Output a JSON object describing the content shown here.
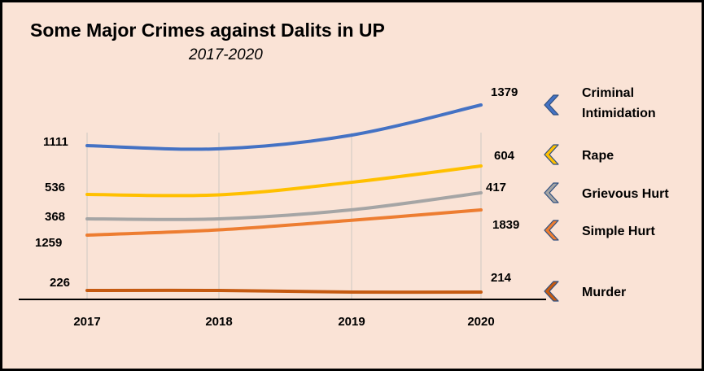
{
  "chart_data": {
    "type": "line",
    "title": "Some Major Crimes against Dalits in UP",
    "subtitle": "2017-2020",
    "xlabel": "",
    "ylabel": "",
    "categories": [
      "2017",
      "2018",
      "2019",
      "2020"
    ],
    "series": [
      {
        "name": "Criminal Intimidation",
        "legend_lines": [
          "Criminal",
          "Intimidation"
        ],
        "color": "#4472c4",
        "values": [
          1111,
          1090,
          1180,
          1379
        ],
        "labels": [
          "1111",
          "",
          "",
          "1379"
        ]
      },
      {
        "name": "Rape",
        "legend_lines": [
          "Rape"
        ],
        "color": "#ffc000",
        "values": [
          536,
          535,
          565,
          604
        ],
        "labels": [
          "536",
          "",
          "",
          "604"
        ]
      },
      {
        "name": "Grievous Hurt",
        "legend_lines": [
          "Grievous Hurt"
        ],
        "color": "#a5a5a5",
        "values": [
          368,
          368,
          385,
          417
        ],
        "labels": [
          "368",
          "",
          "",
          "417"
        ]
      },
      {
        "name": "Simple Hurt",
        "legend_lines": [
          "Simple Hurt"
        ],
        "color": "#ed7d31",
        "values": [
          1259,
          1380,
          1600,
          1839
        ],
        "labels": [
          "1259",
          "",
          "",
          "1839"
        ]
      },
      {
        "name": "Murder",
        "legend_lines": [
          "Murder"
        ],
        "color": "#c55a11",
        "values": [
          226,
          226,
          214,
          214
        ],
        "labels": [
          "226",
          "",
          "",
          "214"
        ]
      }
    ],
    "grid": "vertical",
    "legend": "right"
  }
}
